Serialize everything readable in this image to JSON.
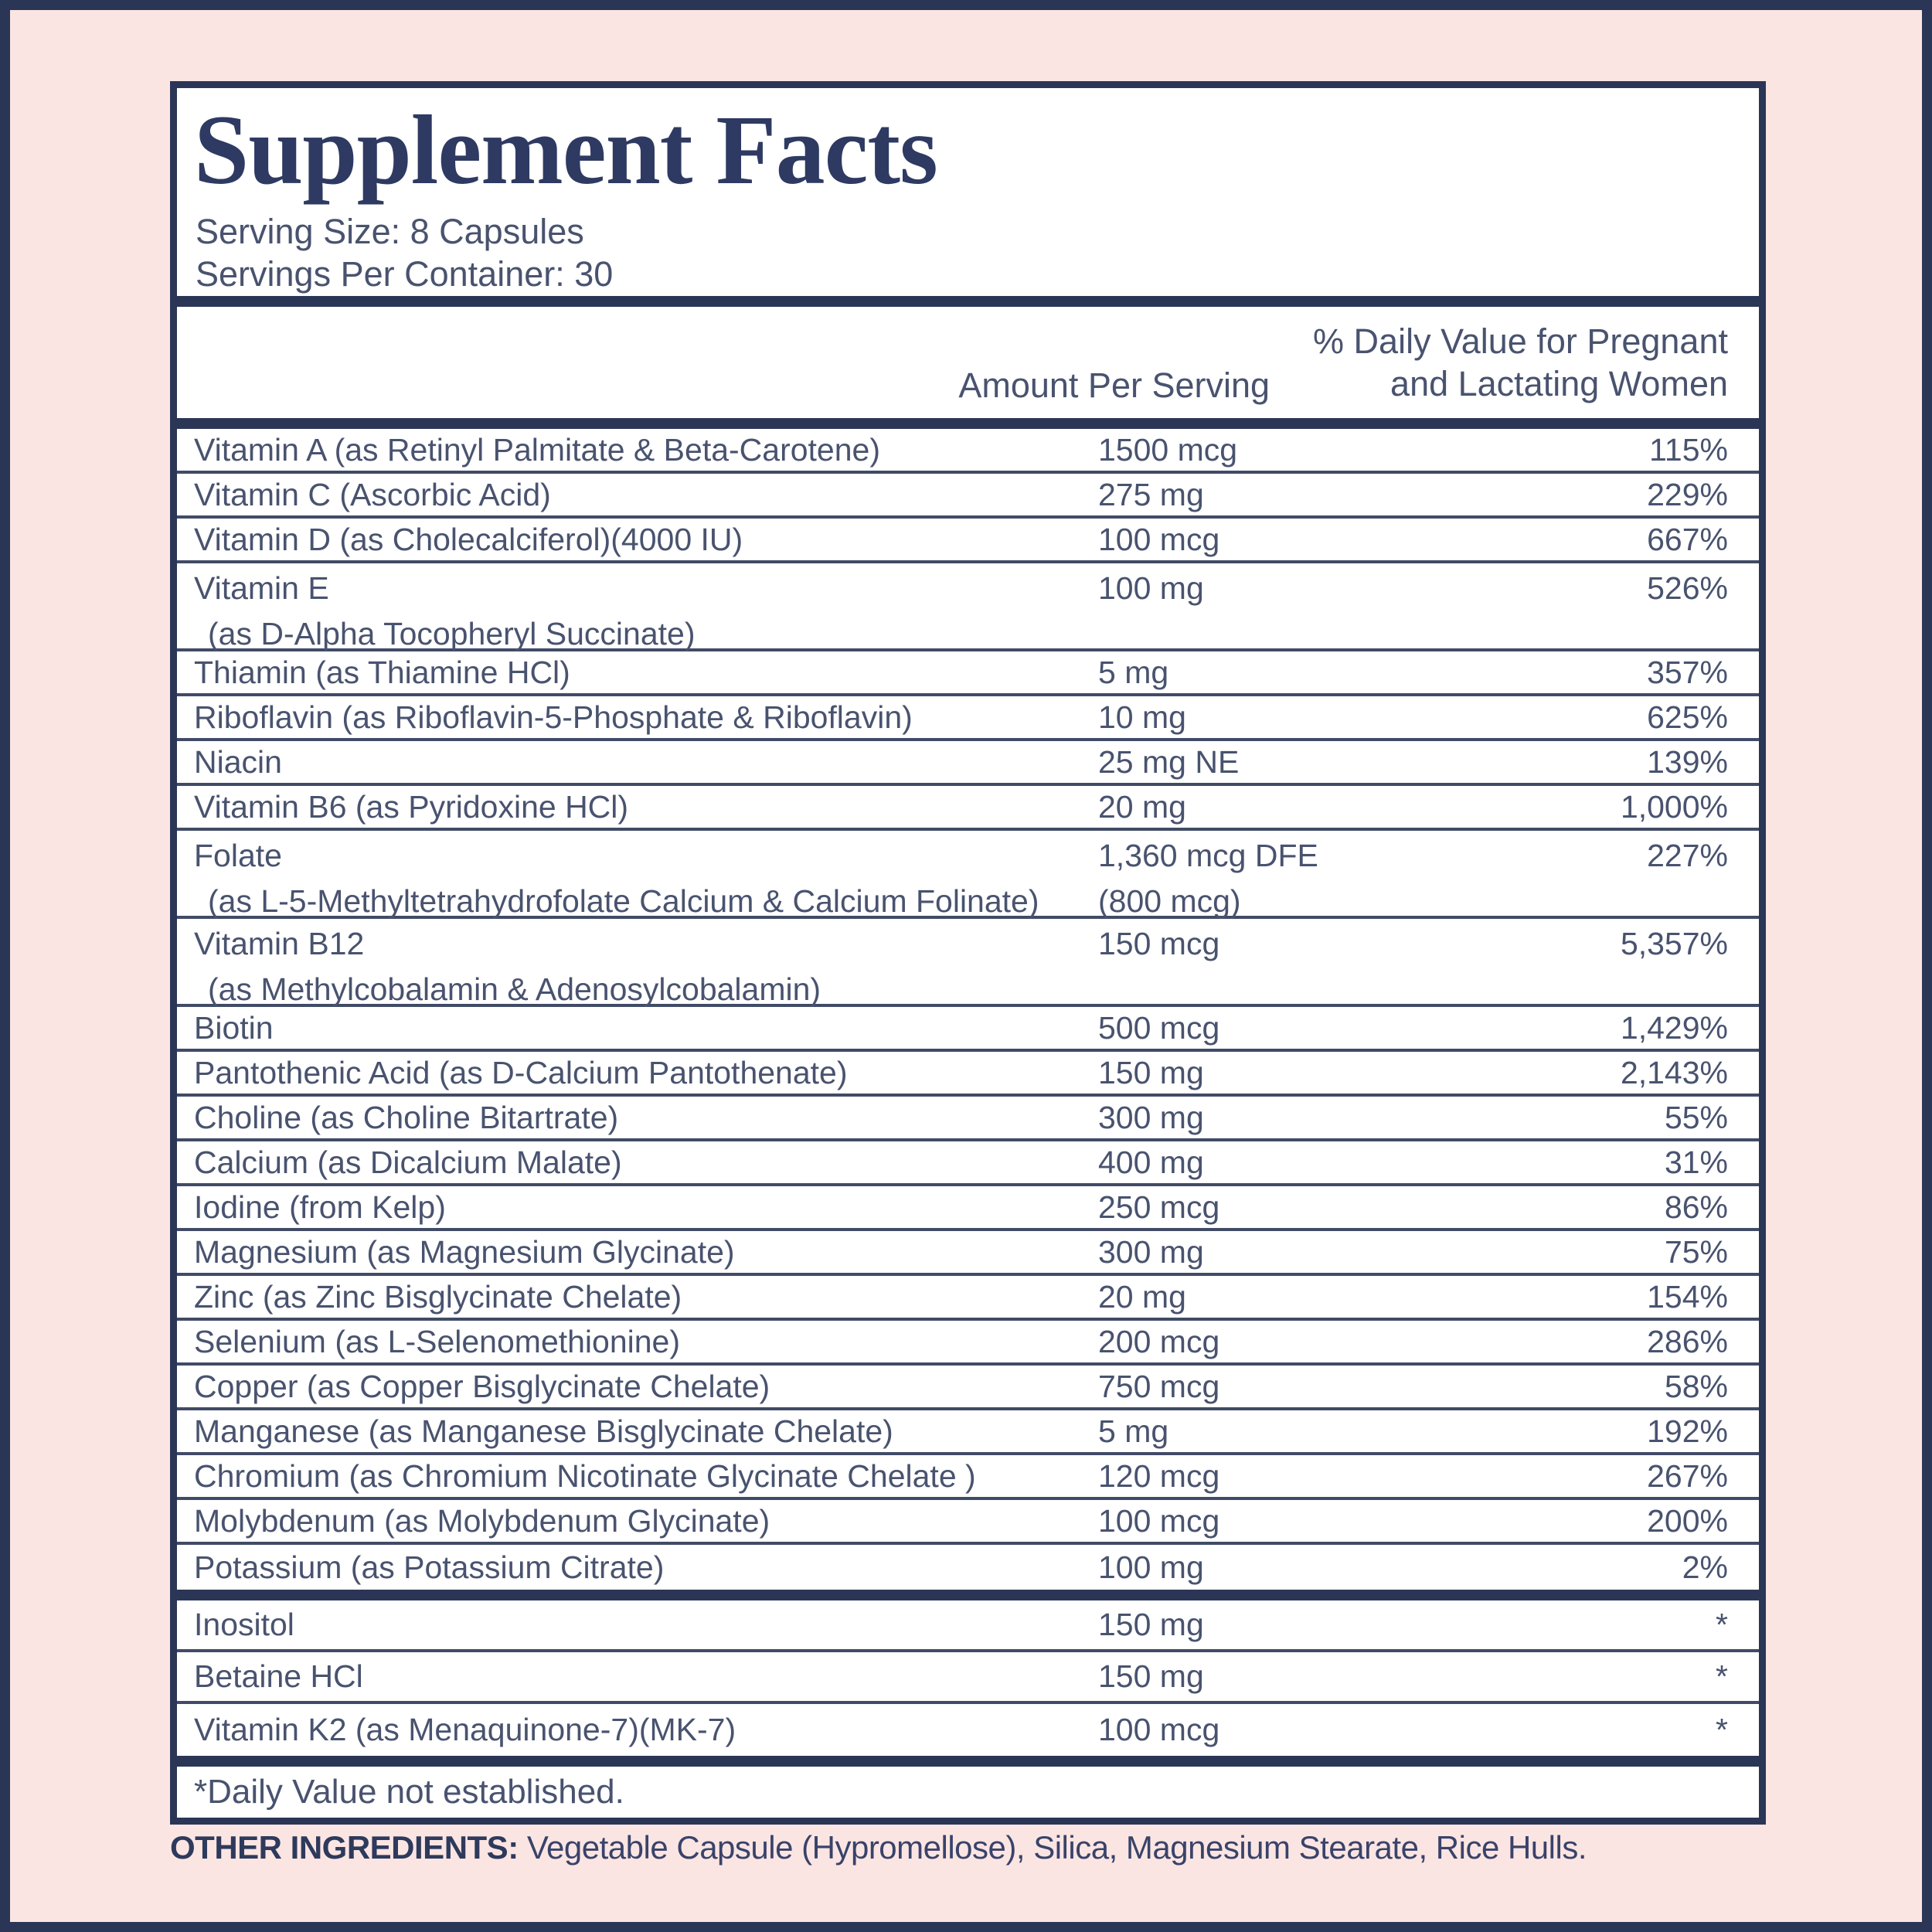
{
  "label": {
    "title": "Supplement Facts",
    "serving_size": "Serving Size: 8 Capsules",
    "servings_per_container": "Servings Per Container: 30",
    "col_amount": "Amount Per Serving",
    "col_dv_line1": "% Daily Value for Pregnant",
    "col_dv_line2": "and Lactating Women",
    "footnote": "*Daily Value not established.",
    "other_ingredients_label": "OTHER INGREDIENTS:",
    "other_ingredients_text": " Vegetable Capsule (Hypromellose), Silica, Magnesium Stearate, Rice Hulls.",
    "colors": {
      "background_pink": "#fbe5e3",
      "navy": "#2b3657",
      "body_text": "#49536f"
    }
  },
  "nutrients": [
    {
      "name": "Vitamin A (as Retinyl Palmitate & Beta-Carotene)",
      "amount": "1500 mcg",
      "dv": "115%"
    },
    {
      "name": "Vitamin C (Ascorbic Acid)",
      "amount": "275 mg",
      "dv": "229%"
    },
    {
      "name": "Vitamin D (as Cholecalciferol)(4000 IU)",
      "amount": "100 mcg",
      "dv": "667%"
    },
    {
      "name": "Vitamin E",
      "name2": "(as D-Alpha Tocopheryl Succinate)",
      "amount": "100 mg",
      "dv": "526%"
    },
    {
      "name": "Thiamin (as Thiamine HCl)",
      "amount": "5 mg",
      "dv": "357%"
    },
    {
      "name": "Riboflavin (as Riboflavin-5-Phosphate & Riboflavin)",
      "amount": "10 mg",
      "dv": "625%"
    },
    {
      "name": "Niacin",
      "amount": "25 mg NE",
      "dv": "139%"
    },
    {
      "name": "Vitamin B6 (as Pyridoxine HCl)",
      "amount": "20 mg",
      "dv": "1,000%"
    },
    {
      "name": "Folate",
      "name2": "(as L-5-Methyltetrahydrofolate Calcium & Calcium Folinate)",
      "amount": "1,360 mcg DFE",
      "amount2": "(800 mcg)",
      "dv": "227%"
    },
    {
      "name": "Vitamin B12",
      "name2": "(as Methylcobalamin & Adenosylcobalamin)",
      "amount": "150 mcg",
      "dv": "5,357%"
    },
    {
      "name": "Biotin",
      "amount": "500 mcg",
      "dv": "1,429%"
    },
    {
      "name": "Pantothenic Acid (as D-Calcium Pantothenate)",
      "amount": "150 mg",
      "dv": "2,143%"
    },
    {
      "name": "Choline (as Choline Bitartrate)",
      "amount": "300 mg",
      "dv": "55%"
    },
    {
      "name": "Calcium (as Dicalcium Malate)",
      "amount": "400 mg",
      "dv": "31%"
    },
    {
      "name": "Iodine (from Kelp)",
      "amount": "250 mcg",
      "dv": "86%"
    },
    {
      "name": "Magnesium (as Magnesium Glycinate)",
      "amount": "300 mg",
      "dv": "75%"
    },
    {
      "name": "Zinc (as Zinc Bisglycinate Chelate)",
      "amount": "20 mg",
      "dv": "154%"
    },
    {
      "name": "Selenium (as L-Selenomethionine)",
      "amount": "200 mcg",
      "dv": "286%"
    },
    {
      "name": "Copper (as Copper Bisglycinate Chelate)",
      "amount": "750 mcg",
      "dv": "58%"
    },
    {
      "name": "Manganese (as Manganese Bisglycinate Chelate)",
      "amount": "5 mg",
      "dv": "192%"
    },
    {
      "name": "Chromium (as Chromium Nicotinate Glycinate Chelate )",
      "amount": "120 mcg",
      "dv": "267%"
    },
    {
      "name": "Molybdenum (as Molybdenum Glycinate)",
      "amount": "100 mcg",
      "dv": "200%"
    },
    {
      "name": "Potassium (as Potassium Citrate)",
      "amount": "100 mg",
      "dv": "2%"
    }
  ],
  "extras": [
    {
      "name": "Inositol",
      "amount": "150 mg",
      "dv": "*"
    },
    {
      "name": "Betaine HCl",
      "amount": "150 mg",
      "dv": "*"
    },
    {
      "name": "Vitamin K2 (as Menaquinone-7)(MK-7)",
      "amount": "100 mcg",
      "dv": "*"
    }
  ]
}
